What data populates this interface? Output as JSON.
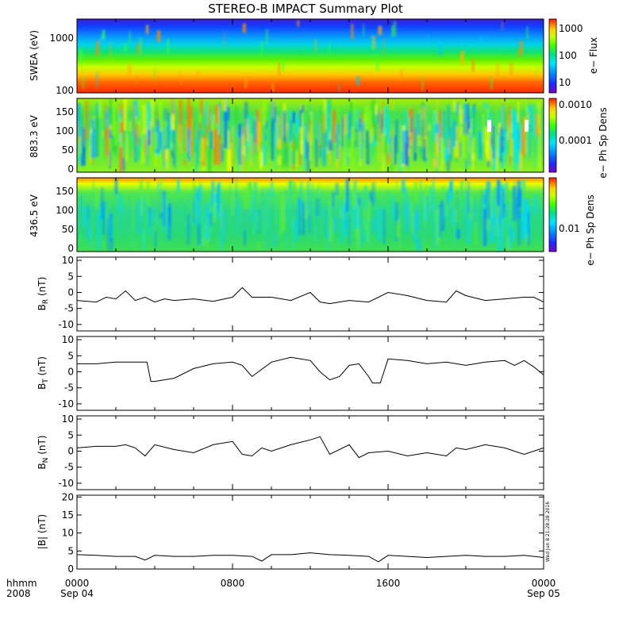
{
  "title": "STEREO-B IMPACT Summary Plot",
  "footer": {
    "left_top": "hhmm",
    "left_bottom": "2008",
    "stamp": "Wed Jun 8 21:28:28 2016"
  },
  "time_axis": {
    "tick_hhmm": [
      "0000",
      "0800",
      "1600",
      "0000"
    ],
    "tick_dates": [
      "Sep 04",
      "",
      "",
      "Sep 05"
    ],
    "range_hours": [
      0,
      24
    ]
  },
  "colors": {
    "line": "#000000",
    "axis": "#000000"
  },
  "spectrograms": [
    {
      "id": "swea",
      "ylabel": "SWEA (eV)",
      "yticks": [
        "1000",
        "100"
      ],
      "ytick_values": [
        1000,
        100
      ],
      "ylim": [
        90,
        2000
      ],
      "scale": "log",
      "cbar_label": "e− Flux",
      "cbar_ticks": [
        "1000",
        "100",
        "10"
      ],
      "cbar_values": [
        1000,
        100,
        10
      ]
    },
    {
      "id": "pad_883",
      "ylabel": "883.3 eV",
      "yticks": [
        "150",
        "100",
        "50",
        "0"
      ],
      "ytick_values": [
        150,
        100,
        50,
        0
      ],
      "ylim": [
        -5,
        180
      ],
      "scale": "linear",
      "cbar_label": "e− Ph Sp Dens",
      "cbar_ticks": [
        "0.0010",
        "0.0001"
      ],
      "cbar_values": [
        0.001,
        0.0001
      ]
    },
    {
      "id": "pad_436",
      "ylabel": "436.5 eV",
      "yticks": [
        "150",
        "100",
        "50",
        "0"
      ],
      "ytick_values": [
        150,
        100,
        50,
        0
      ],
      "ylim": [
        -5,
        180
      ],
      "scale": "linear",
      "cbar_label": "e− Ph Sp Dens",
      "cbar_ticks": [
        "0.01"
      ],
      "cbar_values": [
        0.01
      ]
    }
  ],
  "chart_data": [
    {
      "type": "line",
      "id": "br",
      "ylabel_main": "B",
      "ylabel_sub": "R",
      "ylabel_unit": " (nT)",
      "ylim": [
        -12,
        11
      ],
      "yticks": [
        10,
        5,
        0,
        -5,
        -10
      ],
      "x": [
        0,
        1,
        1.5,
        2,
        2.5,
        3,
        3.5,
        4,
        4.5,
        5,
        6,
        7,
        8,
        8.5,
        9,
        10,
        11,
        12,
        12.5,
        13,
        14,
        15,
        16,
        17,
        18,
        19,
        19.5,
        20,
        21,
        22,
        23,
        23.5,
        24
      ],
      "values": [
        -2.5,
        -3,
        -1.5,
        -2,
        0.5,
        -2.5,
        -1.5,
        -3,
        -2,
        -2.5,
        -2,
        -2.8,
        -1.5,
        1.5,
        -1.5,
        -1.5,
        -2.5,
        0,
        -3,
        -3.5,
        -2.5,
        -3,
        0,
        -1,
        -2.5,
        -3,
        0.5,
        -1,
        -2.5,
        -2,
        -1.5,
        -1.5,
        -3
      ]
    },
    {
      "type": "line",
      "id": "bt",
      "ylabel_main": "B",
      "ylabel_sub": "T",
      "ylabel_unit": " (nT)",
      "ylim": [
        -12,
        11
      ],
      "yticks": [
        10,
        5,
        0,
        -5,
        -10
      ],
      "x": [
        0,
        1,
        2,
        3,
        3.6,
        3.8,
        4,
        4.5,
        5,
        6,
        7,
        8,
        8.5,
        9,
        10,
        11,
        11.5,
        12,
        12.5,
        13,
        13.5,
        14,
        14.5,
        15,
        15.2,
        15.6,
        16,
        17,
        18,
        19,
        20,
        21,
        22,
        22.5,
        23,
        23.5,
        24
      ],
      "values": [
        2.5,
        2.5,
        3,
        3,
        3,
        -3,
        -3,
        -2.5,
        -2,
        1,
        2.5,
        3,
        2,
        -1.5,
        3,
        4.5,
        4,
        3.5,
        0,
        -2.5,
        -1.5,
        2,
        2.5,
        -1.5,
        -3.5,
        -3.5,
        4,
        3.5,
        2.5,
        3,
        2,
        3,
        3.5,
        2,
        3.5,
        1.5,
        -1
      ]
    },
    {
      "type": "line",
      "id": "bn",
      "ylabel_main": "B",
      "ylabel_sub": "N",
      "ylabel_unit": " (nT)",
      "ylim": [
        -12,
        11
      ],
      "yticks": [
        10,
        5,
        0,
        -5,
        -10
      ],
      "x": [
        0,
        1,
        2,
        2.5,
        3,
        3.5,
        4,
        5,
        6,
        7,
        8,
        8.5,
        9,
        9.5,
        10,
        11,
        12,
        12.5,
        13,
        14,
        14.5,
        15,
        16,
        17,
        18,
        19,
        19.5,
        20,
        21,
        22,
        22.5,
        23,
        24
      ],
      "values": [
        1,
        1.5,
        1.5,
        2,
        1,
        -1.5,
        2,
        0.5,
        -0.5,
        2,
        3,
        -1,
        -1.5,
        1,
        0,
        2,
        3.5,
        4.5,
        -1,
        2,
        -2,
        -0.5,
        0,
        -1.5,
        -0.5,
        -1.5,
        1,
        0.5,
        2,
        1,
        0,
        -1,
        1
      ]
    },
    {
      "type": "line",
      "id": "bmag",
      "ylabel_main": "|B|",
      "ylabel_sub": "",
      "ylabel_unit": " (nT)",
      "ylim": [
        0,
        20.5
      ],
      "yticks": [
        20,
        15,
        10,
        5,
        0
      ],
      "x": [
        0,
        1,
        2,
        3,
        3.5,
        4,
        5,
        6,
        7,
        8,
        9,
        9.5,
        10,
        11,
        12,
        13,
        14,
        15,
        15.5,
        16,
        17,
        18,
        19,
        20,
        21,
        22,
        23,
        24
      ],
      "values": [
        4,
        3.8,
        3.5,
        3.5,
        2.5,
        3.8,
        3.5,
        3.5,
        3.8,
        3.8,
        3.5,
        2.2,
        4,
        4,
        4.5,
        4,
        3.8,
        3.5,
        2,
        3.8,
        3.5,
        3.2,
        3.5,
        3.8,
        3.5,
        3.5,
        3.8,
        3.2
      ]
    }
  ]
}
